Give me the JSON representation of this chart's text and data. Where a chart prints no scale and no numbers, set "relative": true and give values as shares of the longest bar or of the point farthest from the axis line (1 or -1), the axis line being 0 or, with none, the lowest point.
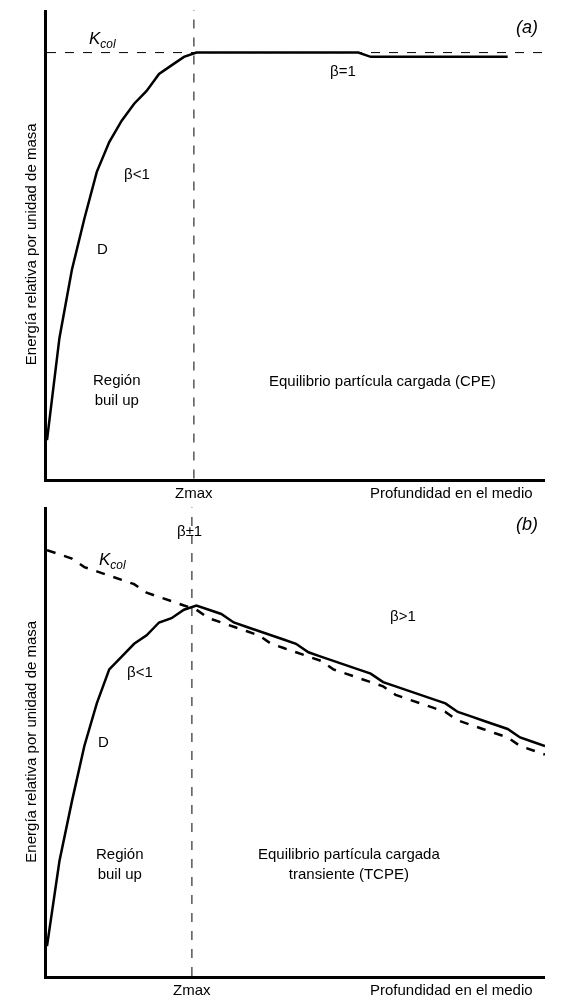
{
  "chart_data": [
    {
      "type": "line",
      "title": "(a)",
      "relative": true,
      "xlabel": "Profundidad en el medio",
      "ylabel": "Energía relativa por unidad de masa",
      "categories": [
        null,
        null,
        null,
        null,
        null,
        null,
        null,
        null,
        null,
        null,
        null,
        null,
        null,
        null,
        null,
        null,
        null,
        null,
        null,
        null,
        null,
        null,
        null,
        null,
        null,
        null,
        null,
        null,
        null,
        null,
        null,
        null,
        null,
        null,
        null,
        null,
        null,
        null,
        null,
        null,
        null
      ],
      "series": [
        {
          "color": "#000000",
          "line_style": "solid",
          "values": [
            0.09,
            0.33,
            0.49,
            0.61,
            0.72,
            0.79,
            0.84,
            0.88,
            0.91,
            0.95,
            0.97,
            0.99,
            1.0,
            1.0,
            1.0,
            1.0,
            1.0,
            1.0,
            1.0,
            1.0,
            1.0,
            1.0,
            1.0,
            1.0,
            1.0,
            1.0,
            0.99,
            0.99,
            0.99,
            0.99,
            0.99,
            0.99,
            0.99,
            0.99,
            0.99,
            0.99,
            0.99,
            0.99,
            null,
            null,
            null
          ]
        }
      ],
      "ref_lines": [
        {
          "axis": "y",
          "value": 1,
          "label": "K$_{col}$",
          "line_style": "dashed",
          "color": "#000000"
        }
      ],
      "annotations": [
        "Zmax",
        "β=1",
        "β<1",
        "D",
        "Región\nbuil up",
        "Equilibrio partícula cargada (CPE)"
      ]
    },
    {
      "type": "line",
      "title": "(b)",
      "relative": true,
      "xlabel": "Profundidad en el medio",
      "ylabel": "Energía relativa por unidad de masa",
      "categories": [
        null,
        null,
        null,
        null,
        null,
        null,
        null,
        null,
        null,
        null,
        null,
        null,
        null,
        null,
        null,
        null,
        null,
        null,
        null,
        null,
        null,
        null,
        null,
        null,
        null,
        null,
        null,
        null,
        null,
        null,
        null,
        null,
        null,
        null,
        null,
        null,
        null,
        null,
        null,
        null,
        null
      ],
      "series": [
        {
          "color": "#000000",
          "line_style": "solid",
          "values": [
            0.07,
            0.27,
            0.41,
            0.54,
            0.64,
            0.72,
            0.75,
            0.78,
            0.8,
            0.83,
            0.84,
            0.86,
            0.87,
            0.86,
            0.85,
            0.83,
            0.82,
            0.81,
            0.8,
            0.79,
            0.78,
            0.76,
            0.75,
            0.74,
            0.73,
            0.72,
            0.71,
            0.69,
            0.68,
            0.67,
            0.66,
            0.65,
            0.64,
            0.62,
            0.61,
            0.6,
            0.59,
            0.58,
            0.56,
            0.55,
            0.54
          ]
        },
        {
          "name": "K$_{col}$",
          "color": "#000000",
          "line_style": "dashed",
          "values": [
            1.0,
            0.99,
            0.98,
            0.96,
            0.95,
            0.94,
            0.93,
            0.92,
            0.9,
            0.89,
            0.88,
            0.87,
            0.86,
            0.84,
            0.83,
            0.82,
            0.81,
            0.8,
            0.78,
            0.77,
            0.76,
            0.75,
            0.74,
            0.72,
            0.71,
            0.7,
            0.69,
            0.68,
            0.66,
            0.65,
            0.64,
            0.63,
            0.62,
            0.6,
            0.59,
            0.58,
            0.57,
            0.56,
            0.54,
            0.53,
            0.52
          ]
        }
      ],
      "annotations": [
        "Zmax",
        "β±1",
        "β>1",
        "β<1",
        "D",
        "Región\nbuil up",
        "Equilibrio partícula cargada\ntransiente (TCPE)"
      ]
    }
  ]
}
